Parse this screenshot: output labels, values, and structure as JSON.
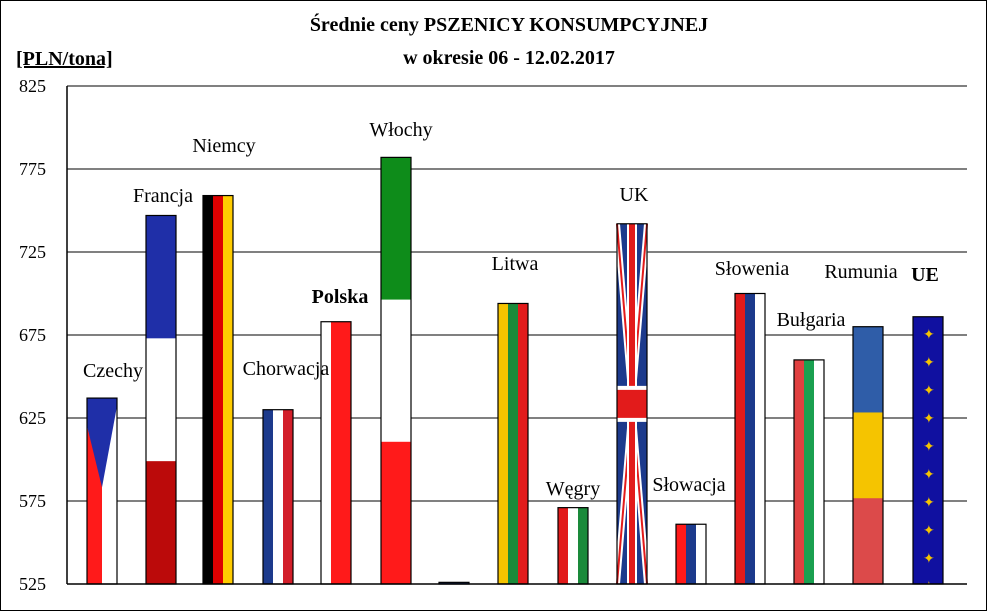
{
  "chart_data": {
    "type": "bar",
    "title": "Średnie ceny PSZENICY KONSUMPCYJNEJ",
    "subtitle": "w okresie  06 - 12.02.2017",
    "ylabel": "[PLN/tona]",
    "ylim": [
      525,
      825
    ],
    "yticks": [
      "525",
      "575",
      "625",
      "675",
      "725",
      "775",
      "825"
    ],
    "grid": true,
    "legend": "none",
    "categories": [
      "Czechy",
      "Francja",
      "Niemcy",
      "Chorwacja",
      "Polska",
      "Włochy",
      "",
      "Litwa",
      "Węgry",
      "UK",
      "Słowacja",
      "Słowenia",
      "Bułgaria",
      "Rumunia",
      "UE"
    ],
    "values": [
      637,
      747,
      759,
      630,
      683,
      782,
      526,
      694,
      571,
      742,
      561,
      700,
      660,
      680,
      686
    ]
  },
  "colors": {
    "grid": "#000000",
    "ue_label": "#e00000",
    "polska_label_weight": "bold"
  }
}
